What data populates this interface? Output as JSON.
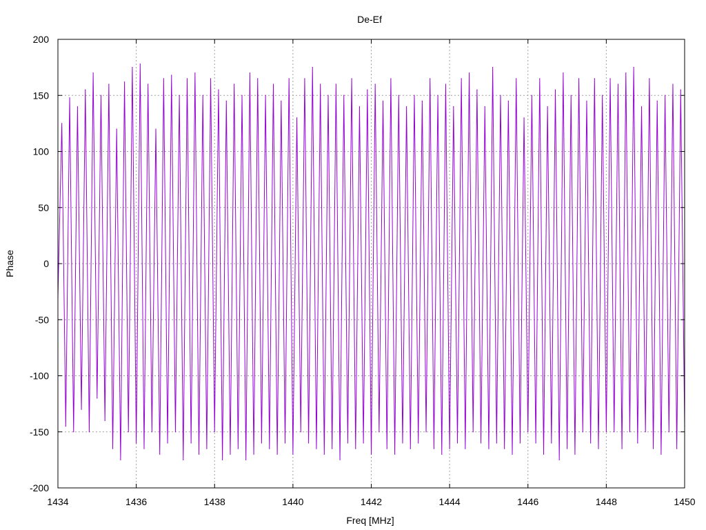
{
  "chart_data": {
    "type": "line",
    "title": "De-Ef",
    "xlabel": "Freq [MHz]",
    "ylabel": "Phase",
    "xlim": [
      1434,
      1450
    ],
    "ylim": [
      -200,
      200
    ],
    "xticks": [
      1434,
      1436,
      1438,
      1440,
      1442,
      1444,
      1446,
      1448,
      1450
    ],
    "yticks": [
      -200,
      -150,
      -100,
      -50,
      0,
      50,
      100,
      150,
      200
    ],
    "grid": true,
    "series": [
      {
        "color": "#9400d3",
        "x": [
          1434.0,
          1434.1,
          1434.2,
          1434.3,
          1434.4,
          1434.5,
          1434.6,
          1434.7,
          1434.8,
          1434.9,
          1435.0,
          1435.1,
          1435.2,
          1435.3,
          1435.4,
          1435.5,
          1435.6,
          1435.7,
          1435.8,
          1435.9,
          1436.0,
          1436.1,
          1436.2,
          1436.3,
          1436.4,
          1436.5,
          1436.6,
          1436.7,
          1436.8,
          1436.9,
          1437.0,
          1437.1,
          1437.2,
          1437.3,
          1437.4,
          1437.5,
          1437.6,
          1437.7,
          1437.8,
          1437.9,
          1438.0,
          1438.1,
          1438.2,
          1438.3,
          1438.4,
          1438.5,
          1438.6,
          1438.7,
          1438.8,
          1438.9,
          1439.0,
          1439.1,
          1439.2,
          1439.3,
          1439.4,
          1439.5,
          1439.6,
          1439.7,
          1439.8,
          1439.9,
          1440.0,
          1440.1,
          1440.2,
          1440.3,
          1440.4,
          1440.5,
          1440.6,
          1440.7,
          1440.8,
          1440.9,
          1441.0,
          1441.1,
          1441.2,
          1441.3,
          1441.4,
          1441.5,
          1441.6,
          1441.7,
          1441.8,
          1441.9,
          1442.0,
          1442.1,
          1442.2,
          1442.3,
          1442.4,
          1442.5,
          1442.6,
          1442.7,
          1442.8,
          1442.9,
          1443.0,
          1443.1,
          1443.2,
          1443.3,
          1443.4,
          1443.5,
          1443.6,
          1443.7,
          1443.8,
          1443.9,
          1444.0,
          1444.1,
          1444.2,
          1444.3,
          1444.4,
          1444.5,
          1444.6,
          1444.7,
          1444.8,
          1444.9,
          1445.0,
          1445.1,
          1445.2,
          1445.3,
          1445.4,
          1445.5,
          1445.6,
          1445.7,
          1445.8,
          1445.9,
          1446.0,
          1446.1,
          1446.2,
          1446.3,
          1446.4,
          1446.5,
          1446.6,
          1446.7,
          1446.8,
          1446.9,
          1447.0,
          1447.1,
          1447.2,
          1447.3,
          1447.4,
          1447.5,
          1447.6,
          1447.7,
          1447.8,
          1447.9,
          1448.0,
          1448.1,
          1448.2,
          1448.3,
          1448.4,
          1448.5,
          1448.6,
          1448.7,
          1448.8,
          1448.9,
          1449.0,
          1449.1,
          1449.2,
          1449.3,
          1449.4,
          1449.5,
          1449.6,
          1449.7,
          1449.8,
          1449.9,
          1450.0
        ],
        "y": [
          -30,
          125,
          -145,
          148,
          -150,
          140,
          -130,
          155,
          -150,
          170,
          -120,
          150,
          -140,
          160,
          -165,
          120,
          -175,
          162,
          -150,
          175,
          -160,
          178,
          -165,
          160,
          -150,
          120,
          -170,
          165,
          -160,
          168,
          -150,
          150,
          -175,
          165,
          -160,
          170,
          -170,
          150,
          -165,
          165,
          -150,
          155,
          -175,
          145,
          -170,
          160,
          -165,
          150,
          -175,
          170,
          -170,
          165,
          -160,
          150,
          -165,
          160,
          -170,
          145,
          -160,
          165,
          -170,
          130,
          -150,
          165,
          -160,
          175,
          -165,
          160,
          -170,
          150,
          -165,
          160,
          -175,
          150,
          -160,
          165,
          -165,
          140,
          -160,
          155,
          -170,
          160,
          -150,
          145,
          -165,
          165,
          -170,
          150,
          -160,
          140,
          -165,
          150,
          -160,
          145,
          -150,
          165,
          -165,
          150,
          -170,
          160,
          -165,
          140,
          -160,
          165,
          -165,
          170,
          -150,
          155,
          -160,
          140,
          -165,
          175,
          -160,
          150,
          -165,
          145,
          -170,
          165,
          -160,
          130,
          -150,
          150,
          -160,
          165,
          -170,
          140,
          -160,
          155,
          -175,
          170,
          -165,
          150,
          -170,
          165,
          -150,
          145,
          -160,
          165,
          -165,
          150,
          -150,
          165,
          -150,
          160,
          -165,
          170,
          -150,
          175,
          -160,
          140,
          -150,
          165,
          -165,
          145,
          -170,
          150,
          -150,
          160,
          -165,
          155,
          -145
        ]
      }
    ]
  }
}
